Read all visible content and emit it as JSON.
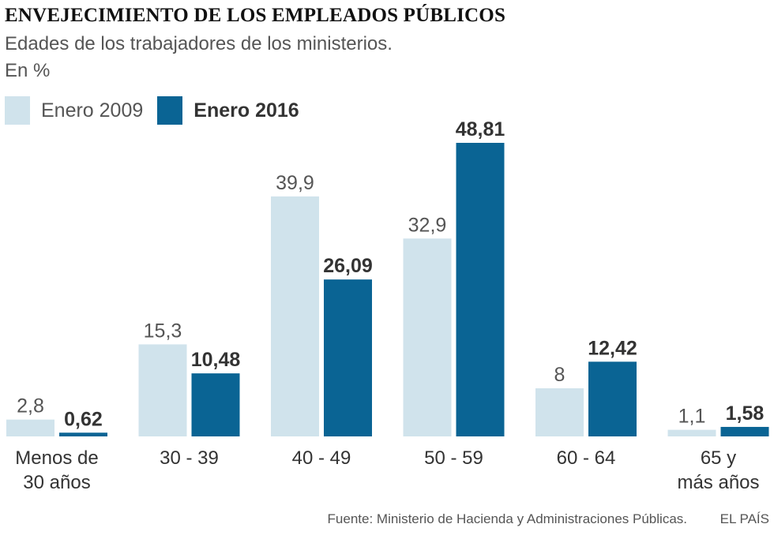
{
  "title": "ENVEJECIMIENTO DE LOS EMPLEADOS PÚBLICOS",
  "subtitle": "Edades de los trabajadores de los ministerios.",
  "unit": "En %",
  "colors": {
    "series2009": "#d0e3ec",
    "series2016": "#0a6494",
    "text": "#333333",
    "muted": "#555555"
  },
  "chart_data": {
    "type": "bar",
    "title": "ENVEJECIMIENTO DE LOS EMPLEADOS PÚBLICOS",
    "subtitle": "Edades de los trabajadores de los ministerios.",
    "ylabel": "En %",
    "xlabel": "",
    "categories": [
      [
        "Menos de",
        "30 años"
      ],
      [
        "30 - 39"
      ],
      [
        "40 - 49"
      ],
      [
        "50 - 59"
      ],
      [
        "60 - 64"
      ],
      [
        "65 y",
        "más años"
      ]
    ],
    "series": [
      {
        "name": "Enero 2009",
        "values": [
          2.8,
          15.3,
          39.9,
          32.9,
          8,
          1.1
        ],
        "labels": [
          "2,8",
          "15,3",
          "39,9",
          "32,9",
          "8",
          "1,1"
        ]
      },
      {
        "name": "Enero 2016",
        "values": [
          0.62,
          10.48,
          26.09,
          48.81,
          12.42,
          1.58
        ],
        "labels": [
          "0,62",
          "10,48",
          "26,09",
          "48,81",
          "12,42",
          "1,58"
        ]
      }
    ],
    "ylim": [
      0,
      48.81
    ],
    "grid": false,
    "legend": "top-left"
  },
  "footer": {
    "source": "Fuente: Ministerio de Hacienda y Administraciones Públicas.",
    "brand": "EL PAÍS"
  }
}
